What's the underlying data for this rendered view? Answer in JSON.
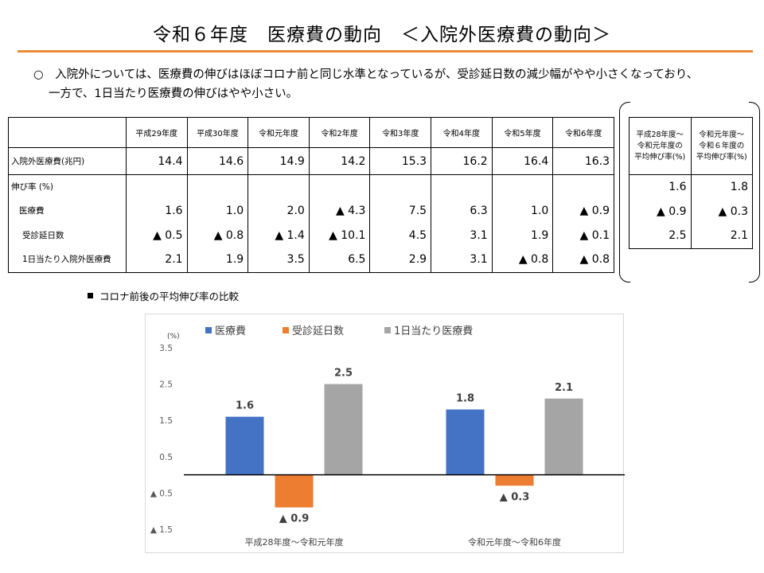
{
  "title": "令和６年度　医療費の動向　＜入院外医療費の動向＞",
  "summary": {
    "line1": "○　入院外については、医療費の伸びはほぼコロナ前と同じ水準となっているが、受診延日数の減少幅がやや小さくなっており、",
    "line2": "一方で、1日当たり医療費の伸びはやや小さい。"
  },
  "main_table": {
    "years": [
      "平成29年度",
      "平成30年度",
      "令和元年度",
      "令和2年度",
      "令和3年度",
      "令和4年度",
      "令和5年度",
      "令和6年度"
    ],
    "amount_label": "入院外医療費(兆円)",
    "amounts": [
      "14.4",
      "14.6",
      "14.9",
      "14.2",
      "15.3",
      "16.2",
      "16.4",
      "16.3"
    ],
    "growth_header": "伸び率 (%)",
    "rows": [
      {
        "label": "医療費",
        "values": [
          "1.6",
          "1.0",
          "2.0",
          "▲ 4.3",
          "7.5",
          "6.3",
          "1.0",
          "▲ 0.9"
        ]
      },
      {
        "label": "受診延日数",
        "values": [
          "▲ 0.5",
          "▲ 0.8",
          "▲ 1.4",
          "▲ 10.1",
          "4.5",
          "3.1",
          "1.9",
          "▲ 0.1"
        ]
      },
      {
        "label": "1日当たり入院外医療費",
        "values": [
          "2.1",
          "1.9",
          "3.5",
          "6.5",
          "2.9",
          "3.1",
          "▲ 0.8",
          "▲ 0.8"
        ]
      }
    ]
  },
  "side_table": {
    "headers": [
      [
        "平成28年度～",
        "令和元年度の",
        "平均伸び率(%)"
      ],
      [
        "令和元年度～",
        "令和６年度の",
        "平均伸び率(%)"
      ]
    ],
    "rows": [
      [
        "1.6",
        "1.8"
      ],
      [
        "▲ 0.9",
        "▲ 0.3"
      ],
      [
        "2.5",
        "2.1"
      ]
    ]
  },
  "chart_heading": "コロナ前後の平均伸び率の比較",
  "chart_data": {
    "type": "bar",
    "unit_label": "(%)",
    "categories": [
      "平成28年度～令和元年度",
      "令和元年度～令和6年度"
    ],
    "series": [
      {
        "name": "医療費",
        "color": "#4472c4",
        "values": [
          1.6,
          1.8
        ],
        "labels": [
          "1.6",
          "1.8"
        ]
      },
      {
        "name": "受診延日数",
        "color": "#ed7d31",
        "values": [
          -0.9,
          -0.3
        ],
        "labels": [
          "▲ 0.9",
          "▲ 0.3"
        ]
      },
      {
        "name": "1日当たり医療費",
        "color": "#a5a5a5",
        "values": [
          2.5,
          2.1
        ],
        "labels": [
          "2.5",
          "2.1"
        ]
      }
    ],
    "ylim": [
      -1.5,
      3.5
    ],
    "yticks": [
      3.5,
      2.5,
      1.5,
      0.5,
      -0.5,
      -1.5
    ],
    "ytick_labels": [
      "3.5",
      "2.5",
      "1.5",
      "0.5",
      "▲ 0.5",
      "▲ 1.5"
    ],
    "legend": "top",
    "grid": false
  }
}
